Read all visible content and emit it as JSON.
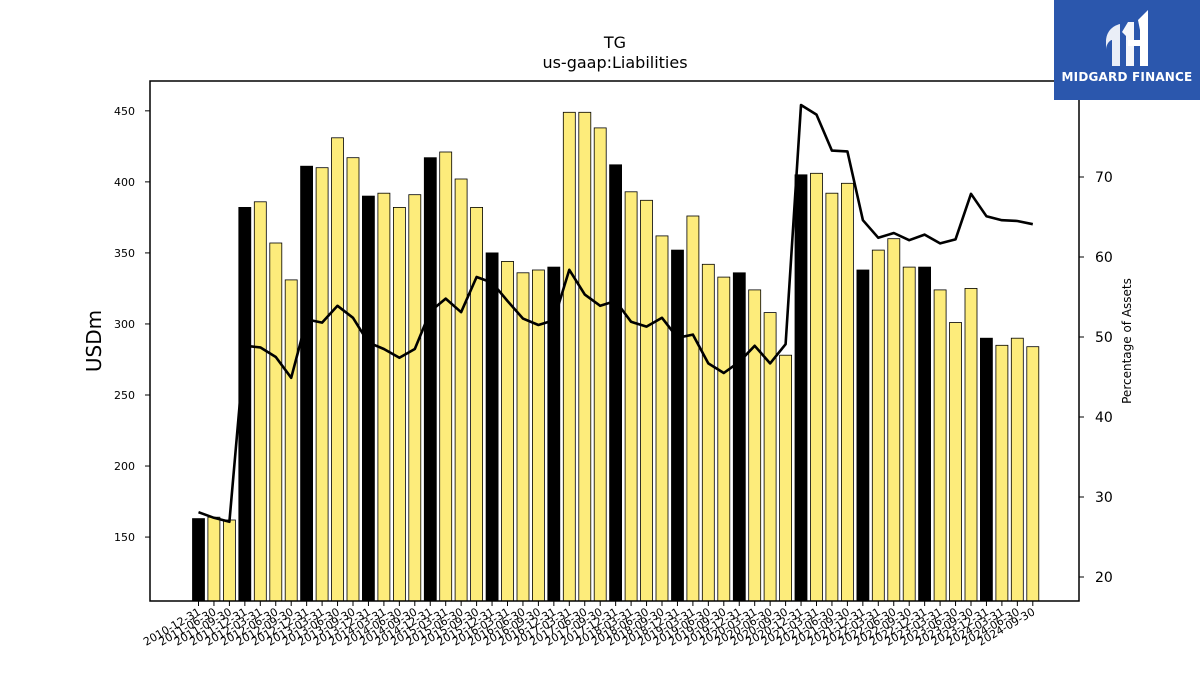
{
  "brand": {
    "name": "MIDGARD FINANCE",
    "color": "#2b57ad"
  },
  "chart_data": {
    "type": "bar",
    "title": "TG",
    "subtitle": "us-gaap:Liabilities",
    "ylabel": "USDm",
    "y2label": "Percentage of Assets",
    "ylim": [
      105,
      471
    ],
    "y2lim": [
      17,
      82
    ],
    "yticks": [
      150,
      200,
      250,
      300,
      350,
      400,
      450
    ],
    "y2ticks": [
      20,
      30,
      40,
      50,
      60,
      70
    ],
    "bar_colors": {
      "annual": "#000000",
      "quarter": "#fdec7b"
    },
    "line_color": "#000000",
    "categories": [
      "2010-12-31",
      "2011-06-30",
      "2011-09-30",
      "2011-12-31",
      "2012-03-31",
      "2012-06-30",
      "2012-09-30",
      "2012-12-31",
      "2013-03-31",
      "2013-06-30",
      "2013-09-30",
      "2013-12-31",
      "2014-03-31",
      "2014-06-30",
      "2014-09-30",
      "2014-12-31",
      "2015-03-31",
      "2015-06-30",
      "2015-09-30",
      "2015-12-31",
      "2016-03-31",
      "2016-06-30",
      "2016-09-30",
      "2016-12-31",
      "2017-03-31",
      "2017-06-30",
      "2017-09-30",
      "2017-12-31",
      "2018-03-31",
      "2018-06-30",
      "2018-09-30",
      "2018-12-31",
      "2019-03-31",
      "2019-06-30",
      "2019-09-30",
      "2019-12-31",
      "2020-03-31",
      "2020-06-30",
      "2020-09-30",
      "2020-12-31",
      "2021-03-31",
      "2021-06-30",
      "2021-09-30",
      "2021-12-31",
      "2022-03-31",
      "2022-06-30",
      "2022-09-30",
      "2022-12-31",
      "2023-03-31",
      "2023-06-30",
      "2023-09-30",
      "2023-12-31",
      "2024-03-31",
      "2024-06-30",
      "2024-09-30"
    ],
    "series": [
      {
        "name": "Liabilities",
        "axis": "left",
        "values": [
          163,
          164,
          162,
          382,
          386,
          357,
          331,
          411,
          410,
          431,
          417,
          390,
          392,
          382,
          391,
          417,
          421,
          402,
          382,
          350,
          344,
          336,
          338,
          340,
          449,
          449,
          438,
          412,
          393,
          387,
          362,
          352,
          376,
          342,
          333,
          336,
          324,
          308,
          278,
          405,
          406,
          392,
          399,
          338,
          352,
          360,
          340,
          340,
          324,
          301,
          325,
          290,
          285,
          290,
          284
        ],
        "annual_flags": [
          1,
          0,
          0,
          1,
          0,
          0,
          0,
          1,
          0,
          0,
          0,
          1,
          0,
          0,
          0,
          1,
          0,
          0,
          0,
          1,
          0,
          0,
          0,
          1,
          0,
          0,
          0,
          1,
          0,
          0,
          0,
          1,
          0,
          0,
          0,
          1,
          0,
          0,
          0,
          1,
          0,
          0,
          0,
          1,
          0,
          0,
          0,
          1,
          0,
          0,
          0,
          1,
          0,
          0,
          0
        ]
      },
      {
        "name": "Percentage of Assets",
        "axis": "right",
        "type": "line",
        "values": [
          28.1,
          27.4,
          26.9,
          48.9,
          48.7,
          47.5,
          44.9,
          52.2,
          51.8,
          53.9,
          52.4,
          49.3,
          48.5,
          47.4,
          48.5,
          53.2,
          54.8,
          53.1,
          57.5,
          56.8,
          54.5,
          52.3,
          51.5,
          52.1,
          58.4,
          55.3,
          53.9,
          54.5,
          51.9,
          51.3,
          52.4,
          49.9,
          50.3,
          46.7,
          45.5,
          46.9,
          48.9,
          46.7,
          49.1,
          79.0,
          77.8,
          73.3,
          73.2,
          64.6,
          62.4,
          63.0,
          62.1,
          62.8,
          61.7,
          62.2,
          67.9,
          65.1,
          64.6,
          64.5,
          64.1
        ]
      }
    ]
  }
}
